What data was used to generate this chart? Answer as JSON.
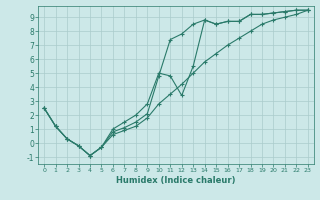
{
  "title": "",
  "xlabel": "Humidex (Indice chaleur)",
  "background_color": "#cce8e8",
  "line_color": "#2a7a6a",
  "grid_color": "#aacccc",
  "xlim": [
    -0.5,
    23.5
  ],
  "ylim": [
    -1.5,
    9.8
  ],
  "xticks": [
    0,
    1,
    2,
    3,
    4,
    5,
    6,
    7,
    8,
    9,
    10,
    11,
    12,
    13,
    14,
    15,
    16,
    17,
    18,
    19,
    20,
    21,
    22,
    23
  ],
  "yticks": [
    -1,
    0,
    1,
    2,
    3,
    4,
    5,
    6,
    7,
    8,
    9
  ],
  "x": [
    0,
    1,
    2,
    3,
    4,
    5,
    6,
    7,
    8,
    9,
    10,
    11,
    12,
    13,
    14,
    15,
    16,
    17,
    18,
    19,
    20,
    21,
    22,
    23
  ],
  "line1": [
    2.5,
    1.2,
    0.3,
    -0.2,
    -0.9,
    -0.3,
    0.8,
    1.1,
    1.5,
    2.1,
    4.8,
    7.4,
    7.8,
    8.5,
    8.8,
    8.5,
    8.7,
    8.7,
    9.2,
    9.2,
    9.3,
    9.4,
    9.5,
    9.5
  ],
  "line2": [
    2.5,
    1.2,
    0.3,
    -0.2,
    -0.9,
    -0.3,
    1.0,
    1.5,
    2.0,
    2.8,
    5.0,
    4.8,
    3.4,
    5.5,
    8.8,
    8.5,
    8.7,
    8.7,
    9.2,
    9.2,
    9.3,
    9.4,
    9.5,
    9.5
  ],
  "line3": [
    2.5,
    1.2,
    0.3,
    -0.2,
    -0.9,
    -0.3,
    0.6,
    0.9,
    1.2,
    1.8,
    2.8,
    3.5,
    4.2,
    5.0,
    5.8,
    6.4,
    7.0,
    7.5,
    8.0,
    8.5,
    8.8,
    9.0,
    9.2,
    9.5
  ]
}
